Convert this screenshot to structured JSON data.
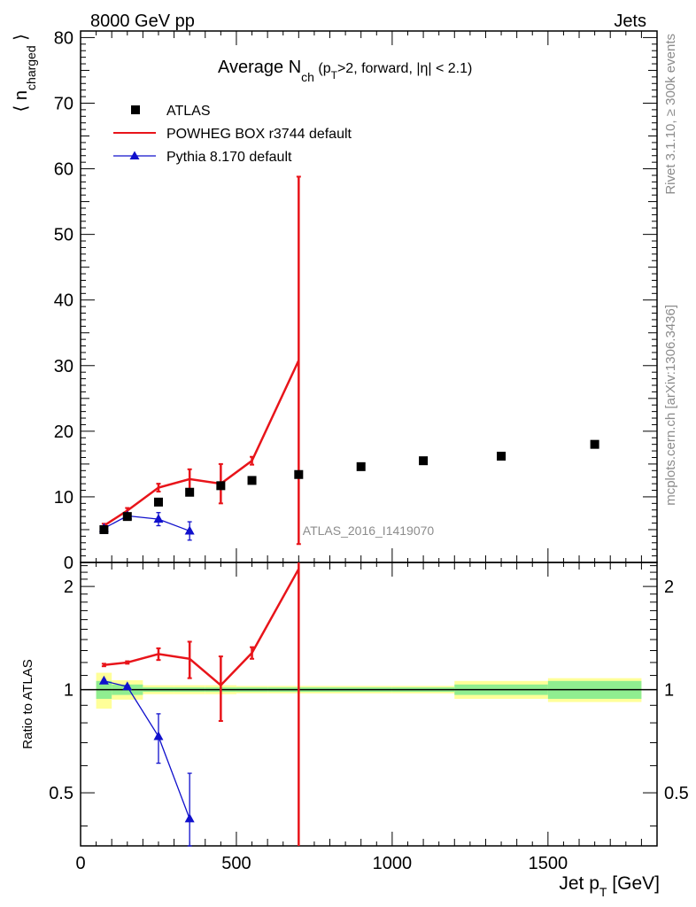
{
  "header": {
    "beam": "8000 GeV pp",
    "process": "Jets",
    "side_label_top": "Rivet 3.1.10, ≥ 300k events",
    "side_label_bottom": "mcplots.cern.ch [arXiv:1306.3436]",
    "analysis_id": "ATLAS_2016_I1419070"
  },
  "legend": {
    "atlas": "ATLAS",
    "powheg": "POWHEG BOX r3744 default",
    "pythia": "Pythia 8.170 default"
  },
  "colors": {
    "atlas": "#000000",
    "powheg": "#e8141a",
    "pythia": "#1010cc",
    "band_inner": "#90ee90",
    "band_outer": "#ffff99"
  },
  "chart_data": [
    {
      "type": "scatter",
      "title": "Average N_ch (p_T>2, forward, |η| < 2.1)",
      "title_parts": {
        "main": "Average N",
        "sub": "ch",
        "rest1": " (p",
        "sub2": "T",
        "rest2": ">2, forward, |η| < 2.1)"
      },
      "ylabel": "⟨ n_charged ⟩",
      "ylabel_parts": {
        "open": "⟨",
        "main": "n",
        "sub": "charged",
        "close": "⟩"
      },
      "xlim": [
        0,
        1850
      ],
      "ylim": [
        0,
        81
      ],
      "yticks": [
        0,
        10,
        20,
        30,
        40,
        50,
        60,
        70,
        80
      ],
      "series": [
        {
          "name": "ATLAS",
          "x": [
            75,
            150,
            250,
            350,
            450,
            550,
            700,
            900,
            1100,
            1350,
            1650
          ],
          "xlow": [
            50,
            100,
            200,
            300,
            400,
            500,
            600,
            800,
            1000,
            1200,
            1500
          ],
          "xhigh": [
            100,
            200,
            300,
            400,
            500,
            600,
            800,
            1000,
            1200,
            1500,
            1800
          ],
          "y": [
            5.0,
            7.0,
            9.2,
            10.7,
            11.7,
            12.5,
            13.4,
            14.6,
            15.5,
            16.2,
            18.0
          ]
        },
        {
          "name": "POWHEG BOX r3744 default",
          "x": [
            75,
            150,
            250,
            350,
            450,
            550,
            700
          ],
          "y": [
            5.6,
            7.9,
            11.4,
            12.7,
            12.0,
            15.5,
            30.8
          ],
          "err": [
            0.3,
            0.4,
            0.6,
            1.5,
            3.0,
            0.6,
            28.0
          ]
        },
        {
          "name": "Pythia 8.170 default",
          "x": [
            75,
            150,
            250,
            350
          ],
          "y": [
            5.2,
            7.1,
            6.6,
            4.8
          ],
          "err": [
            0.2,
            0.3,
            1.0,
            1.4
          ]
        }
      ]
    },
    {
      "type": "scatter",
      "title": "",
      "xlabel": "Jet p_T [GeV]",
      "xlabel_parts": {
        "main": "Jet p",
        "sub": "T",
        "rest": " [GeV]"
      },
      "ylabel": "Ratio to ATLAS",
      "xlim": [
        0,
        1850
      ],
      "ylim": [
        0.35,
        2.35
      ],
      "yticks": [
        0.5,
        1,
        2
      ],
      "xticks": [
        0,
        500,
        1000,
        1500
      ],
      "bands": {
        "xlow": [
          50,
          100,
          200,
          300,
          400,
          500,
          600,
          800,
          1000,
          1200,
          1500
        ],
        "xhigh": [
          100,
          200,
          300,
          400,
          500,
          600,
          800,
          1000,
          1200,
          1500,
          1800
        ],
        "inner": [
          0.06,
          0.035,
          0.015,
          0.015,
          0.015,
          0.015,
          0.015,
          0.015,
          0.015,
          0.035,
          0.06
        ],
        "outer": [
          0.12,
          0.065,
          0.03,
          0.03,
          0.03,
          0.025,
          0.025,
          0.025,
          0.025,
          0.06,
          0.08
        ]
      },
      "series": [
        {
          "name": "POWHEG BOX r3744 default",
          "x": [
            75,
            150,
            250,
            350,
            450,
            550,
            700
          ],
          "y": [
            1.18,
            1.2,
            1.27,
            1.23,
            1.03,
            1.28,
            2.25
          ],
          "err": [
            0.01,
            0.01,
            0.05,
            0.15,
            0.22,
            0.05,
            2.0
          ]
        },
        {
          "name": "Pythia 8.170 default",
          "x": [
            75,
            150,
            250,
            350
          ],
          "y": [
            1.06,
            1.02,
            0.73,
            0.42
          ],
          "err": [
            0.01,
            0.01,
            0.12,
            0.15
          ]
        }
      ]
    }
  ]
}
